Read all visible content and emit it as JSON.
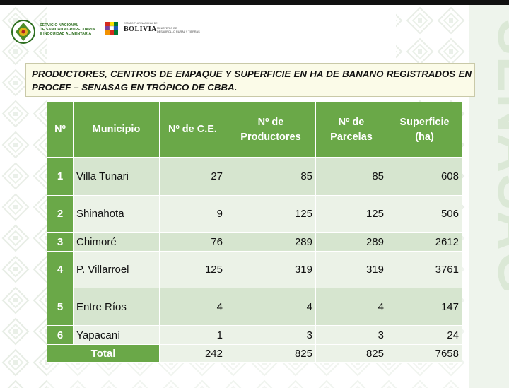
{
  "header": {
    "org_lines": [
      "SERVICIO NACIONAL",
      "DE SANIDAD AGROPECUARIA",
      "E INOCUIDAD ALIMENTARIA"
    ],
    "state_small": "ESTADO PLURINACIONAL DE",
    "state_word": "BOLIVIA",
    "ministry_lines": [
      "MINISTERIO DE",
      "DESARROLLO RURAL Y TIERRAS"
    ],
    "watermark": "SENASAG"
  },
  "title": "PRODUCTORES, CENTROS DE EMPAQUE Y SUPERFICIE EN HA DE BANANO REGISTRADOS EN PROCEF – SENASAG  EN TRÓPICO DE CBBA.",
  "table": {
    "headers": [
      "Nº",
      "Municipio",
      "Nº de C.E.",
      "Nº de Productores",
      "Nº de Parcelas",
      "Superficie (ha)"
    ],
    "rows": [
      {
        "n": "1",
        "municipio": "Villa Tunari",
        "ce": "27",
        "productores": "85",
        "parcelas": "85",
        "superficie": "608"
      },
      {
        "n": "2",
        "municipio": "Shinahota",
        "ce": "9",
        "productores": "125",
        "parcelas": "125",
        "superficie": "506"
      },
      {
        "n": "3",
        "municipio": "Chimoré",
        "ce": "76",
        "productores": "289",
        "parcelas": "289",
        "superficie": "2612"
      },
      {
        "n": "4",
        "municipio": "P. Villarroel",
        "ce": "125",
        "productores": "319",
        "parcelas": "319",
        "superficie": "3761"
      },
      {
        "n": "5",
        "municipio": "Entre Ríos",
        "ce": "4",
        "productores": "4",
        "parcelas": "4",
        "superficie": "147"
      },
      {
        "n": "6",
        "municipio": "Yapacaní",
        "ce": "1",
        "productores": "3",
        "parcelas": "3",
        "superficie": "24"
      }
    ],
    "total": {
      "label": "Total",
      "ce": "242",
      "productores": "825",
      "parcelas": "825",
      "superficie": "7658"
    }
  },
  "colors": {
    "header_green": "#6aa848",
    "row_dark": "#d6e5cf",
    "row_light": "#ebf2e7",
    "title_bg": "#fbfbe8"
  }
}
